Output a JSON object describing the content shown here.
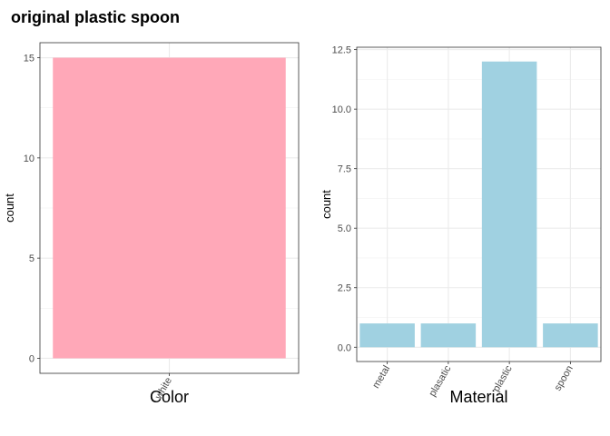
{
  "title": "original plastic spoon",
  "chart_data": [
    {
      "type": "bar",
      "title": "",
      "xlabel": "Color",
      "ylabel": "count",
      "categories": [
        "white"
      ],
      "values": [
        15
      ],
      "ylim": [
        -0.75,
        15.75
      ],
      "yticks": [
        0,
        5,
        10,
        15
      ],
      "ytick_labels": [
        "0",
        "5",
        "10",
        "15"
      ],
      "bar_color": "#FFA8B8",
      "grid": true,
      "x_tick_rotation": -60
    },
    {
      "type": "bar",
      "title": "",
      "xlabel": "Material",
      "ylabel": "count",
      "categories": [
        "metal",
        "plasatic",
        "plastic",
        "spoon"
      ],
      "values": [
        1,
        1,
        12,
        1
      ],
      "ylim": [
        -0.6,
        12.6
      ],
      "yticks": [
        0,
        2.5,
        5,
        7.5,
        10,
        12.5
      ],
      "ytick_labels": [
        "0.0",
        "2.5",
        "5.0",
        "7.5",
        "10.0",
        "12.5"
      ],
      "bar_color": "#A0D1E1",
      "grid": true,
      "x_tick_rotation": -60
    }
  ]
}
